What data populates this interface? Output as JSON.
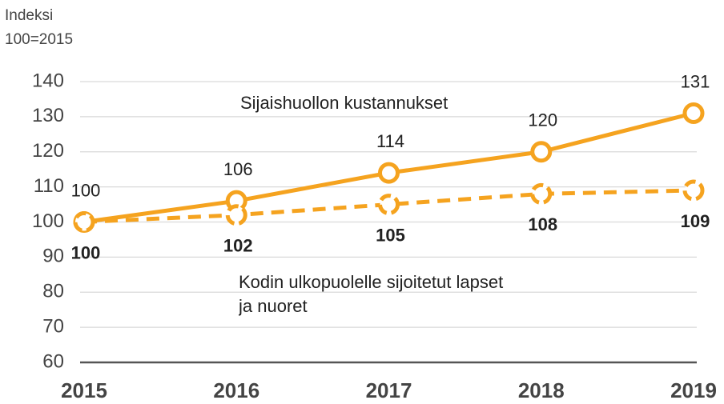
{
  "chart_data": {
    "type": "line",
    "ylabel": [
      "Indeksi",
      "100=2015"
    ],
    "categories": [
      "2015",
      "2016",
      "2017",
      "2018",
      "2019"
    ],
    "series": [
      {
        "name": "Sijaishuollon kustannukset",
        "color": "#f5a31f",
        "dashed": false,
        "values": [
          100,
          106,
          114,
          120,
          131
        ]
      },
      {
        "name": "Kodin ulkopuolelle sijoitetut lapset ja nuoret",
        "color": "#f5a31f",
        "dashed": true,
        "values": [
          100,
          102,
          105,
          108,
          109
        ]
      }
    ],
    "ylim": [
      60,
      140
    ],
    "yticks": [
      60,
      70,
      80,
      90,
      100,
      110,
      120,
      130,
      140
    ],
    "grid": true
  }
}
